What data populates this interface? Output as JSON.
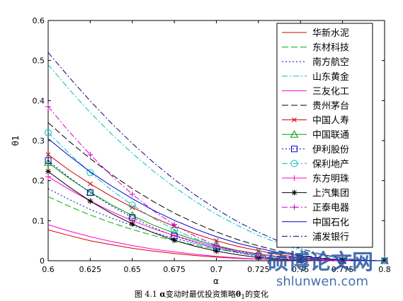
{
  "chart_data": {
    "type": "line",
    "xlabel": "α",
    "ylabel": "θ1",
    "xlim": [
      0.6,
      0.8
    ],
    "ylim": [
      0,
      0.6
    ],
    "x_ticks": [
      "0.6",
      "0.625",
      "0.65",
      "0.675",
      "0.7",
      "0.725",
      "0.75",
      "0.775",
      "0.8"
    ],
    "y_ticks": [
      "0",
      "0.1",
      "0.2",
      "0.3",
      "0.4",
      "0.5",
      "0.6"
    ],
    "x": [
      0.6,
      0.6125,
      0.625,
      0.6375,
      0.65,
      0.6625,
      0.675,
      0.6875,
      0.7,
      0.7125,
      0.725,
      0.7375,
      0.75,
      0.7625,
      0.775,
      0.7875,
      0.8
    ],
    "legend_position": "top-right",
    "series": [
      {
        "name": "华新水泥",
        "color": "#d40000",
        "dash": "solid",
        "marker": "none",
        "values": [
          0.077,
          0.063,
          0.05,
          0.04,
          0.031,
          0.024,
          0.018,
          0.013,
          0.009,
          0.006,
          0.004,
          0.002,
          0.001,
          0,
          0,
          0,
          0
        ]
      },
      {
        "name": "东材科技",
        "color": "#00b000",
        "dash": "longdash",
        "marker": "none",
        "values": [
          0.16,
          0.136,
          0.114,
          0.095,
          0.078,
          0.063,
          0.05,
          0.039,
          0.029,
          0.021,
          0.014,
          0.009,
          0.005,
          0.002,
          0.001,
          0,
          0
        ]
      },
      {
        "name": "南方航空",
        "color": "#0000cc",
        "dash": "dot",
        "marker": "none",
        "values": [
          0.18,
          0.153,
          0.128,
          0.107,
          0.088,
          0.071,
          0.056,
          0.043,
          0.032,
          0.023,
          0.016,
          0.01,
          0.005,
          0.002,
          0.001,
          0,
          0
        ]
      },
      {
        "name": "山东黄金",
        "color": "#00c0c0",
        "dash": "dashdot",
        "marker": "none",
        "values": [
          0.49,
          0.428,
          0.37,
          0.317,
          0.268,
          0.224,
          0.184,
          0.148,
          0.116,
          0.088,
          0.063,
          0.043,
          0.026,
          0.013,
          0.005,
          0.001,
          0
        ]
      },
      {
        "name": "三友化工",
        "color": "#ff00cc",
        "dash": "solid",
        "marker": "none",
        "values": [
          0.09,
          0.074,
          0.06,
          0.048,
          0.038,
          0.029,
          0.022,
          0.016,
          0.011,
          0.007,
          0.004,
          0.002,
          0.001,
          0,
          0,
          0,
          0
        ]
      },
      {
        "name": "贵州茅台",
        "color": "#000000",
        "dash": "longdash",
        "marker": "none",
        "values": [
          0.345,
          0.298,
          0.255,
          0.216,
          0.18,
          0.148,
          0.119,
          0.094,
          0.072,
          0.053,
          0.037,
          0.024,
          0.014,
          0.007,
          0.002,
          0,
          0
        ]
      },
      {
        "name": "中国人寿",
        "color": "#cc0000",
        "dash": "solid",
        "marker": "x",
        "values": [
          0.265,
          0.226,
          0.192,
          0.161,
          0.133,
          0.108,
          0.086,
          0.067,
          0.05,
          0.036,
          0.025,
          0.015,
          0.008,
          0.004,
          0.001,
          0,
          0
        ]
      },
      {
        "name": "中国联通",
        "color": "#00a000",
        "dash": "solid",
        "marker": "triangle",
        "values": [
          0.245,
          0.206,
          0.171,
          0.14,
          0.113,
          0.089,
          0.069,
          0.052,
          0.038,
          0.026,
          0.017,
          0.01,
          0.005,
          0.002,
          0.001,
          0,
          0
        ]
      },
      {
        "name": "伊利股份",
        "color": "#0000cc",
        "dash": "dot",
        "marker": "square",
        "values": [
          0.25,
          0.208,
          0.17,
          0.137,
          0.108,
          0.083,
          0.062,
          0.045,
          0.031,
          0.02,
          0.012,
          0.006,
          0.003,
          0.001,
          0,
          0,
          0
        ]
      },
      {
        "name": "保利地产",
        "color": "#00c0c0",
        "dash": "dashdot",
        "marker": "circle",
        "values": [
          0.32,
          0.268,
          0.22,
          0.177,
          0.139,
          0.106,
          0.078,
          0.055,
          0.036,
          0.022,
          0.012,
          0.005,
          0.002,
          0.001,
          0,
          0,
          0
        ]
      },
      {
        "name": "东方明珠",
        "color": "#ff00cc",
        "dash": "solid",
        "marker": "plus",
        "values": [
          0.21,
          0.178,
          0.149,
          0.123,
          0.1,
          0.08,
          0.063,
          0.048,
          0.035,
          0.025,
          0.016,
          0.01,
          0.005,
          0.002,
          0.001,
          0,
          0
        ]
      },
      {
        "name": "上汽集团",
        "color": "#000000",
        "dash": "solid",
        "marker": "star",
        "values": [
          0.223,
          0.184,
          0.149,
          0.118,
          0.092,
          0.07,
          0.051,
          0.036,
          0.024,
          0.015,
          0.008,
          0.004,
          0.001,
          0,
          0,
          0,
          0
        ]
      },
      {
        "name": "正泰电器",
        "color": "#cc00cc",
        "dash": "dashdot",
        "marker": "plus",
        "values": [
          0.385,
          0.322,
          0.265,
          0.213,
          0.166,
          0.125,
          0.09,
          0.061,
          0.038,
          0.021,
          0.01,
          0.004,
          0.001,
          0,
          0,
          0,
          0
        ]
      },
      {
        "name": "中国石化",
        "color": "#0000cc",
        "dash": "solid",
        "marker": "none",
        "values": [
          0.305,
          0.262,
          0.222,
          0.187,
          0.155,
          0.126,
          0.101,
          0.079,
          0.06,
          0.044,
          0.031,
          0.02,
          0.012,
          0.006,
          0.002,
          0,
          0
        ]
      },
      {
        "name": "浦发银行",
        "color": "#00008b",
        "dash": "dashdot",
        "marker": "none",
        "values": [
          0.52,
          0.458,
          0.399,
          0.344,
          0.293,
          0.246,
          0.203,
          0.164,
          0.129,
          0.098,
          0.071,
          0.048,
          0.03,
          0.016,
          0.006,
          0.001,
          0
        ]
      }
    ]
  },
  "caption": {
    "prefix": "图 4.1",
    "alpha": "α",
    "middle": "变动时最优投资策略",
    "theta": "θ",
    "theta_sub": "1",
    "suffix": "的变化"
  },
  "watermark": {
    "logo": "硕博论文网",
    "url": "shlunwen.com",
    "color": "#1e4f9c"
  }
}
